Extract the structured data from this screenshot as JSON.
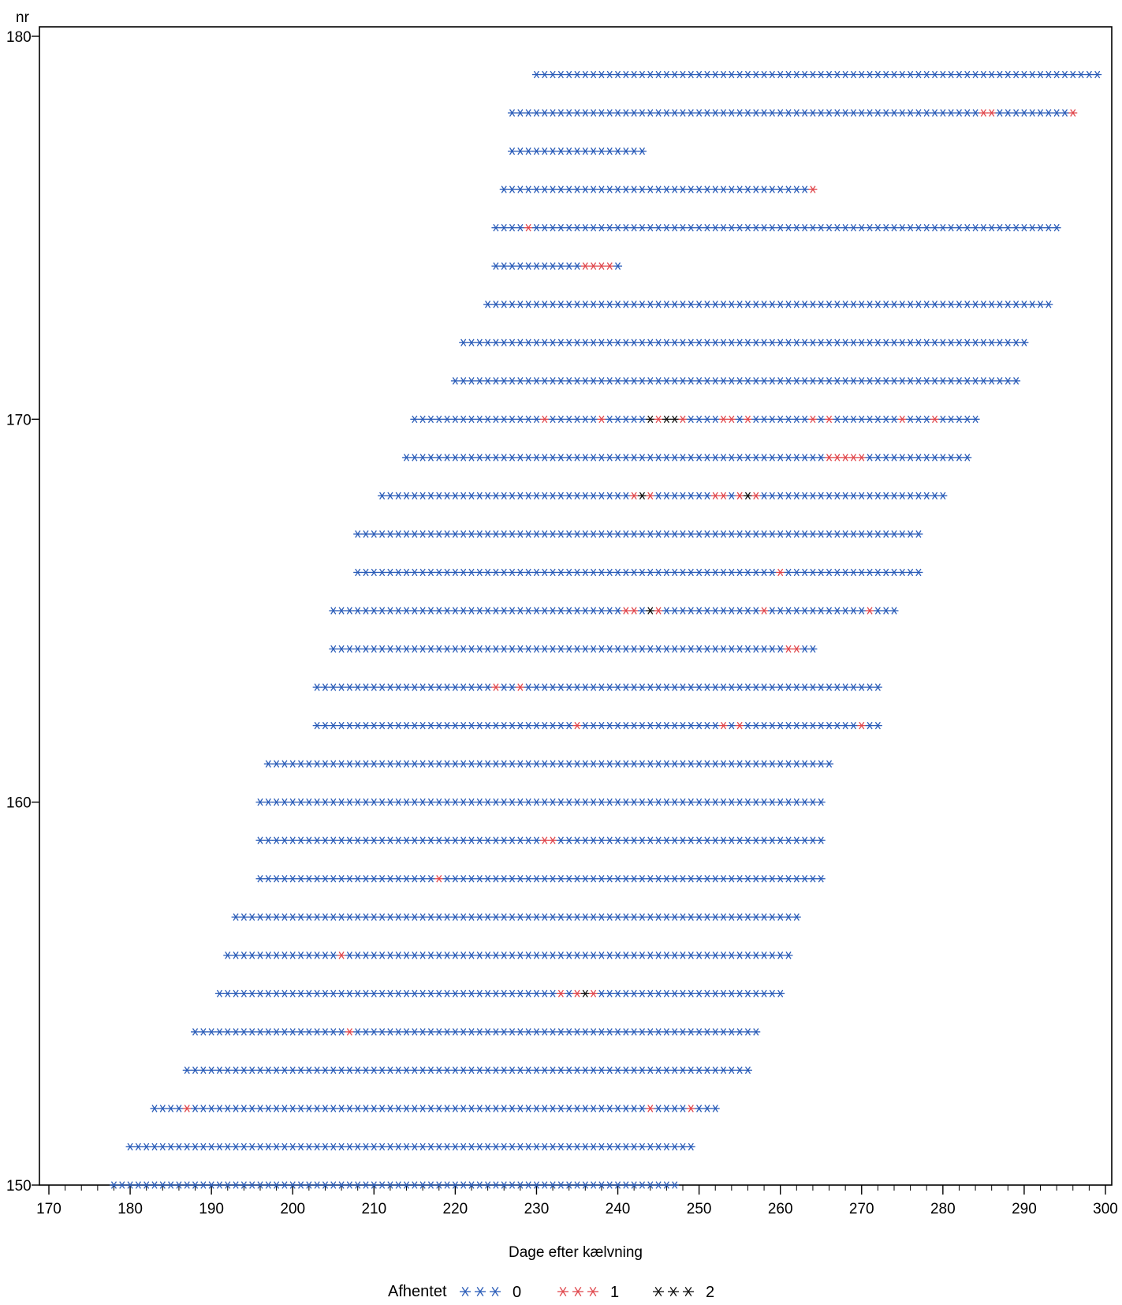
{
  "chart_data": {
    "type": "scatter",
    "title": "",
    "xlabel": "Dage efter kælvning",
    "ylabel": "nr",
    "xlim": [
      170,
      300
    ],
    "ylim": [
      150,
      180
    ],
    "x_ticks": [
      "170",
      "180",
      "190",
      "200",
      "210",
      "220",
      "230",
      "240",
      "250",
      "260",
      "270",
      "280",
      "290",
      "300"
    ],
    "y_ticks": [
      "150",
      "160",
      "170",
      "180"
    ],
    "x_minor_step": 2,
    "grid": false,
    "marker": "asterisk",
    "legend": {
      "title": "Afhentet",
      "placement": "bottom",
      "entries": [
        {
          "label": "0",
          "color": "#2a5cb8"
        },
        {
          "label": "1",
          "color": "#e0484d"
        },
        {
          "label": "2",
          "color": "#111111"
        }
      ]
    },
    "series_note_values": "each row = nr; x = daily observations from start to end (step 1); default category 0, listed days have category 1 or 2",
    "rows": [
      {
        "nr": 150,
        "start": 178,
        "end": 247,
        "cat1": [],
        "cat2": []
      },
      {
        "nr": 151,
        "start": 180,
        "end": 249,
        "cat1": [],
        "cat2": []
      },
      {
        "nr": 152,
        "start": 183,
        "end": 252,
        "cat1": [
          187,
          244,
          249
        ],
        "cat2": []
      },
      {
        "nr": 153,
        "start": 187,
        "end": 256,
        "cat1": [],
        "cat2": []
      },
      {
        "nr": 154,
        "start": 188,
        "end": 257,
        "cat1": [
          207
        ],
        "cat2": []
      },
      {
        "nr": 155,
        "start": 191,
        "end": 260,
        "cat1": [
          233,
          235,
          237
        ],
        "cat2": [
          236
        ]
      },
      {
        "nr": 156,
        "start": 192,
        "end": 261,
        "cat1": [
          206
        ],
        "cat2": []
      },
      {
        "nr": 157,
        "start": 193,
        "end": 262,
        "cat1": [],
        "cat2": []
      },
      {
        "nr": 158,
        "start": 196,
        "end": 265,
        "cat1": [
          218
        ],
        "cat2": []
      },
      {
        "nr": 159,
        "start": 196,
        "end": 265,
        "cat1": [
          231,
          232
        ],
        "cat2": []
      },
      {
        "nr": 160,
        "start": 196,
        "end": 265,
        "cat1": [],
        "cat2": []
      },
      {
        "nr": 161,
        "start": 197,
        "end": 266,
        "cat1": [],
        "cat2": []
      },
      {
        "nr": 162,
        "start": 203,
        "end": 272,
        "cat1": [
          235,
          253,
          255,
          270
        ],
        "cat2": []
      },
      {
        "nr": 163,
        "start": 203,
        "end": 272,
        "cat1": [
          225,
          228
        ],
        "cat2": []
      },
      {
        "nr": 164,
        "start": 205,
        "end": 264,
        "cat1": [
          261,
          262
        ],
        "cat2": []
      },
      {
        "nr": 165,
        "start": 205,
        "end": 274,
        "cat1": [
          241,
          242,
          245,
          258,
          271
        ],
        "cat2": [
          244
        ]
      },
      {
        "nr": 166,
        "start": 208,
        "end": 277,
        "cat1": [
          260
        ],
        "cat2": []
      },
      {
        "nr": 167,
        "start": 208,
        "end": 277,
        "cat1": [],
        "cat2": []
      },
      {
        "nr": 168,
        "start": 211,
        "end": 280,
        "cat1": [
          242,
          244,
          252,
          253,
          255,
          257
        ],
        "cat2": [
          243,
          256
        ]
      },
      {
        "nr": 169,
        "start": 214,
        "end": 283,
        "cat1": [
          266,
          267,
          268,
          269,
          270
        ],
        "cat2": []
      },
      {
        "nr": 170,
        "start": 215,
        "end": 284,
        "cat1": [
          231,
          238,
          245,
          248,
          253,
          254,
          256,
          264,
          266,
          275,
          279
        ],
        "cat2": [
          244,
          246,
          247
        ]
      },
      {
        "nr": 171,
        "start": 220,
        "end": 289,
        "cat1": [],
        "cat2": []
      },
      {
        "nr": 172,
        "start": 221,
        "end": 290,
        "cat1": [],
        "cat2": []
      },
      {
        "nr": 173,
        "start": 224,
        "end": 293,
        "cat1": [],
        "cat2": []
      },
      {
        "nr": 174,
        "start": 225,
        "end": 240,
        "cat1": [
          236,
          237,
          238,
          239
        ],
        "cat2": []
      },
      {
        "nr": 175,
        "start": 225,
        "end": 294,
        "cat1": [
          229
        ],
        "cat2": []
      },
      {
        "nr": 176,
        "start": 226,
        "end": 264,
        "cat1": [
          264
        ],
        "cat2": []
      },
      {
        "nr": 177,
        "start": 227,
        "end": 243,
        "cat1": [],
        "cat2": []
      },
      {
        "nr": 178,
        "start": 227,
        "end": 296,
        "cat1": [
          285,
          286,
          296
        ],
        "cat2": []
      },
      {
        "nr": 179,
        "start": 230,
        "end": 299,
        "cat1": [],
        "cat2": []
      }
    ]
  }
}
